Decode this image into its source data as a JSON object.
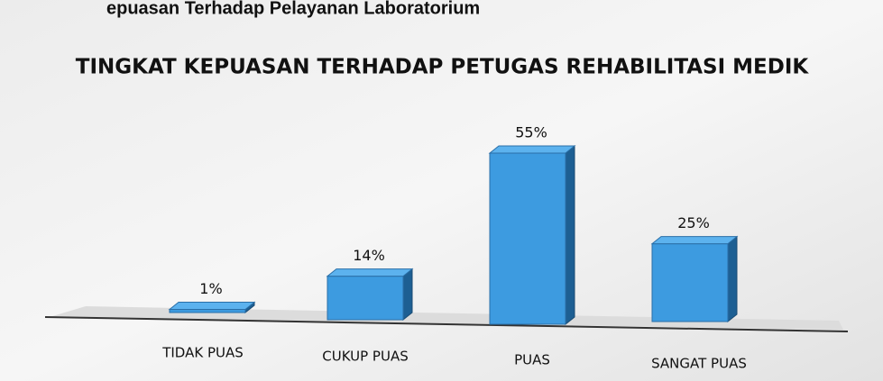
{
  "heading": "epuasan Terhadap Pelayanan Laboratorium",
  "chart_data": {
    "type": "bar3d",
    "title": "TINGKAT KEPUASAN TERHADAP PETUGAS REHABILITASI MEDIK",
    "categories": [
      "TIDAK PUAS",
      "CUKUP PUAS",
      "PUAS",
      "SANGAT PUAS"
    ],
    "values": [
      1,
      14,
      55,
      25
    ],
    "value_labels": [
      "1%",
      "14%",
      "55%",
      "25%"
    ],
    "color": "#3d9be0"
  }
}
